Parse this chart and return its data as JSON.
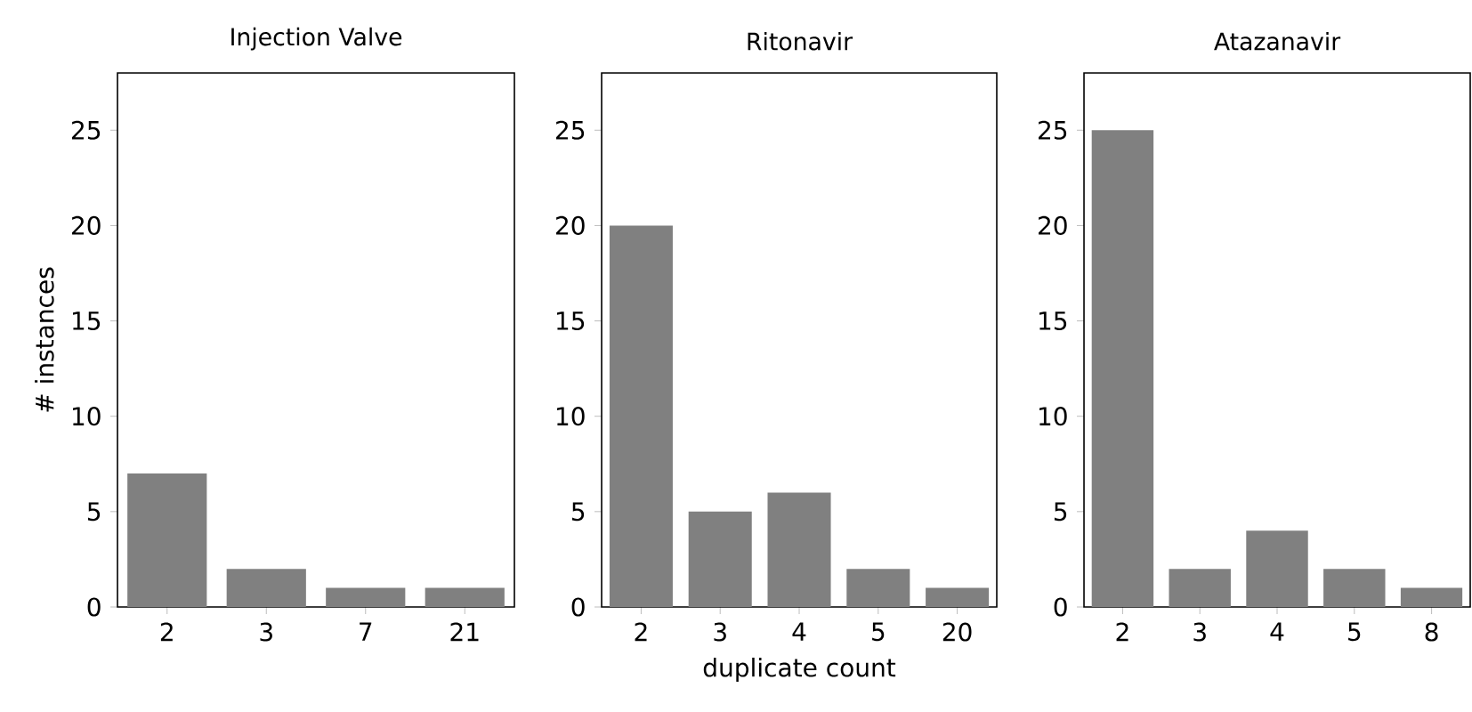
{
  "chart_data": [
    {
      "type": "bar",
      "title": "Injection Valve",
      "ylabel": "# instances",
      "categories": [
        "2",
        "3",
        "7",
        "21"
      ],
      "values": [
        7,
        2,
        1,
        1
      ],
      "color": "#808080",
      "ylim": [
        0,
        28
      ],
      "yticks": [
        0,
        5,
        10,
        15,
        20,
        25
      ],
      "grid": false
    },
    {
      "type": "bar",
      "title": "Ritonavir",
      "xlabel": "duplicate count",
      "categories": [
        "2",
        "3",
        "4",
        "5",
        "20"
      ],
      "values": [
        20,
        5,
        6,
        2,
        1
      ],
      "color": "#808080",
      "ylim": [
        0,
        28
      ],
      "yticks": [
        0,
        5,
        10,
        15,
        20,
        25
      ],
      "grid": false
    },
    {
      "type": "bar",
      "title": "Atazanavir",
      "categories": [
        "2",
        "3",
        "4",
        "5",
        "8"
      ],
      "values": [
        25,
        2,
        4,
        2,
        1
      ],
      "color": "#808080",
      "ylim": [
        0,
        28
      ],
      "yticks": [
        0,
        5,
        10,
        15,
        20,
        25
      ],
      "grid": false
    }
  ]
}
